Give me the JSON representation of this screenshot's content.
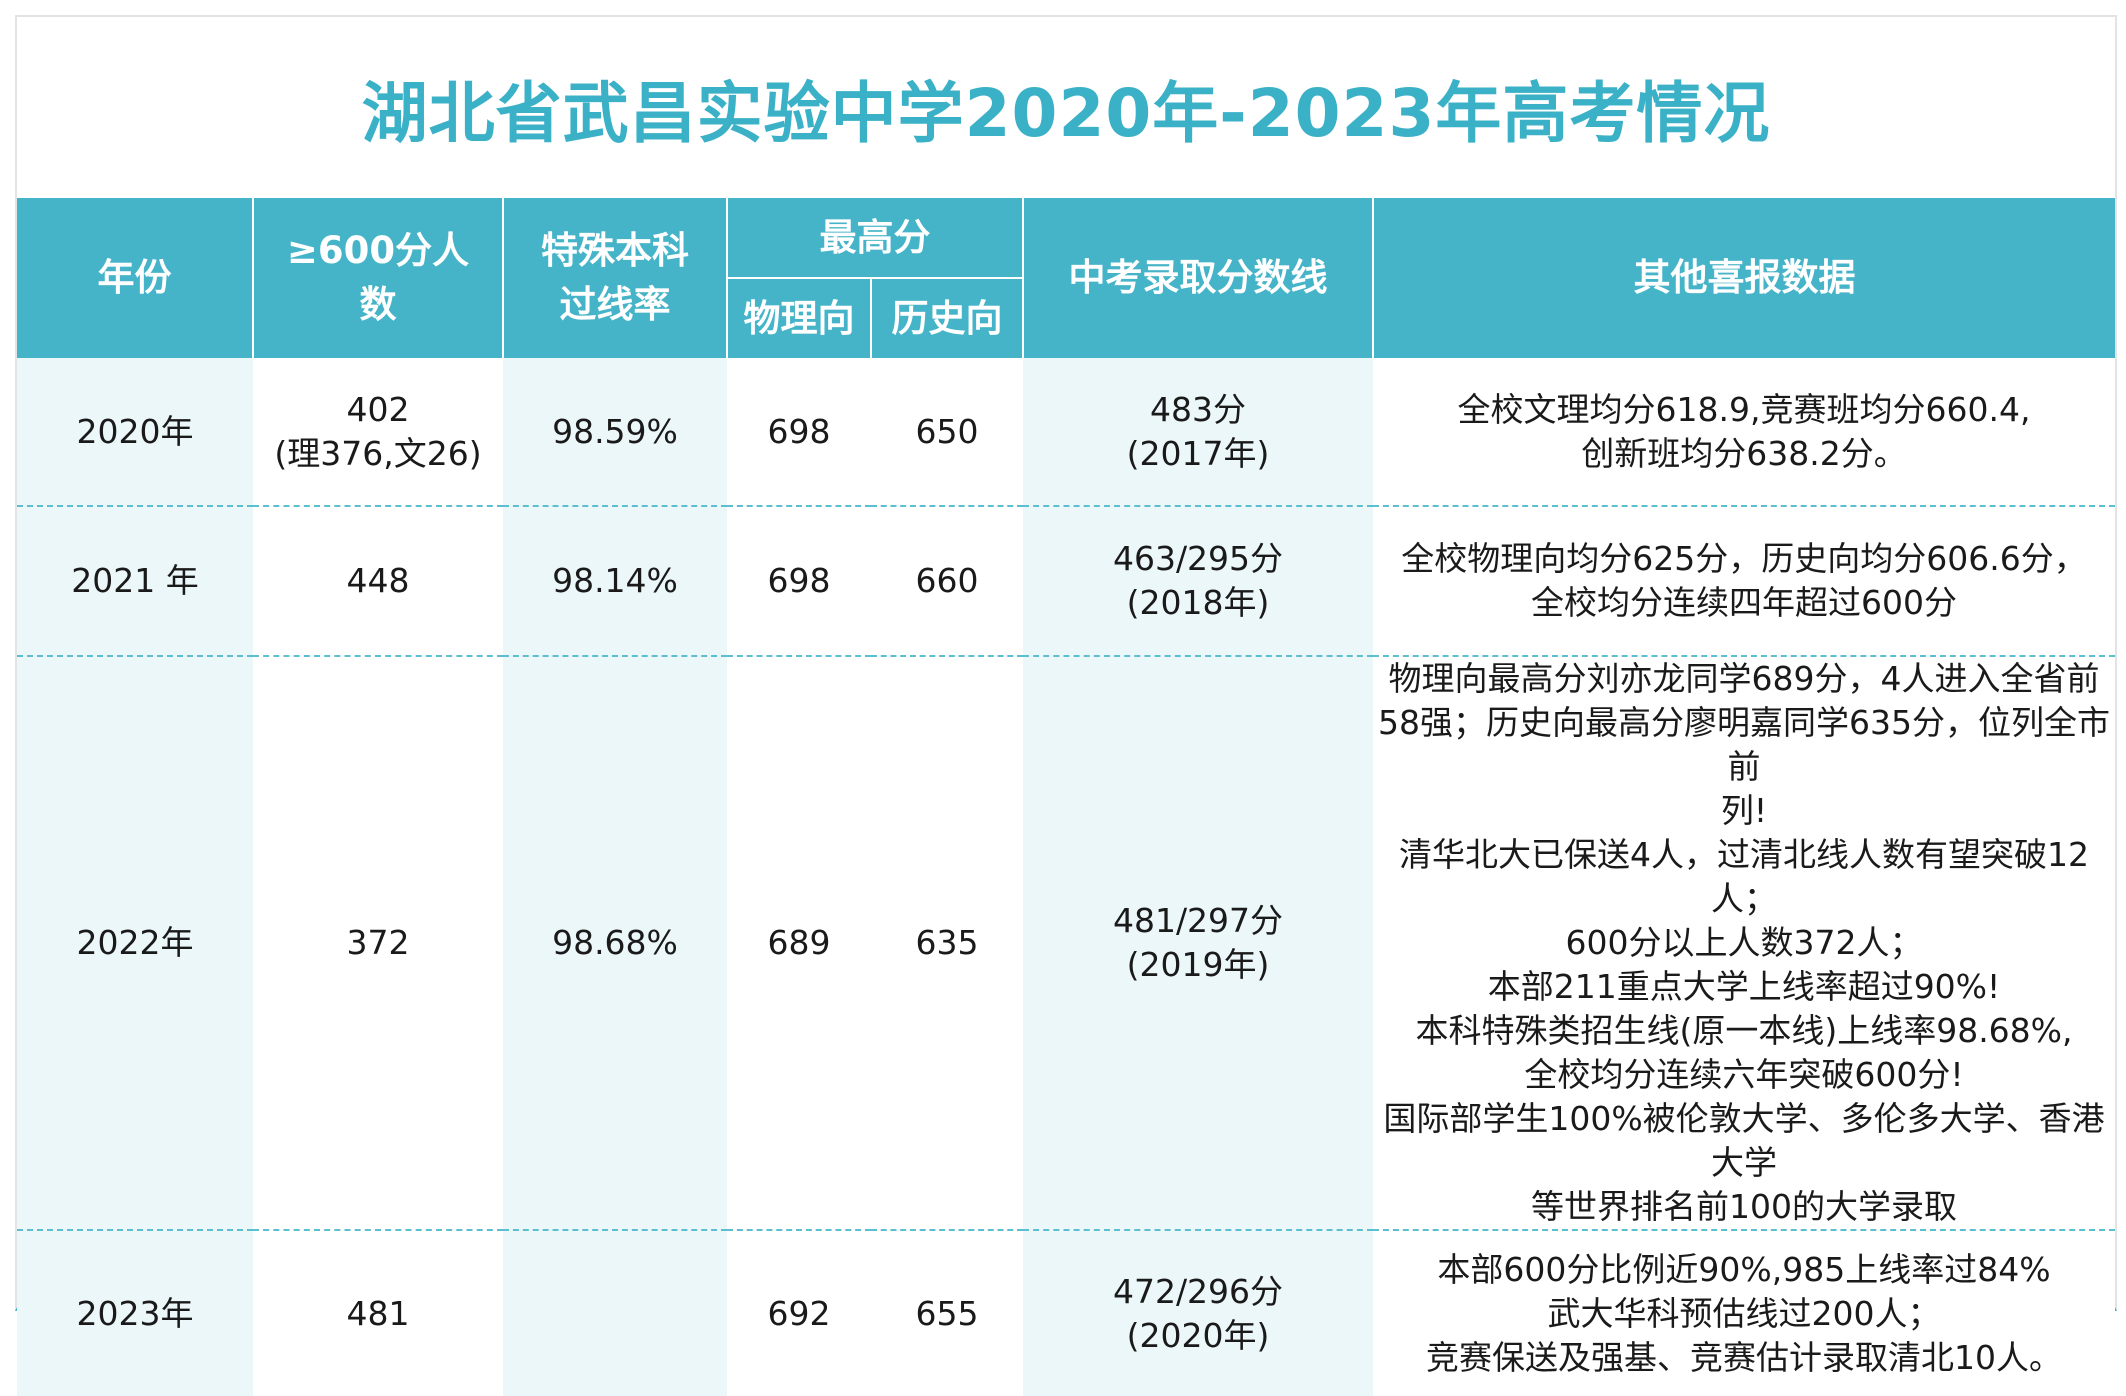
{
  "title": "湖北省武昌实验中学2020年-2023年高考情况",
  "headers": {
    "year": "年份",
    "over600_line1": "≥600分人",
    "over600_line2": "数",
    "pass_rate_line1": "特殊本科",
    "pass_rate_line2": "过线率",
    "top_score": "最高分",
    "physics": "物理向",
    "history": "历史向",
    "zhongkao": "中考录取分数线",
    "other": "其他喜报数据"
  },
  "rows": [
    {
      "year": "2020年",
      "over600": "402",
      "over600_detail": "(理376,文26)",
      "pass_rate": "98.59%",
      "physics": "698",
      "history": "650",
      "zhongkao": "483分",
      "zhongkao_year": "(2017年)",
      "other": [
        "全校文理均分618.9,竞赛班均分660.4,",
        "创新班均分638.2分。"
      ]
    },
    {
      "year": "2021 年",
      "over600": "448",
      "pass_rate": "98.14%",
      "physics": "698",
      "history": "660",
      "zhongkao": "463/295分",
      "zhongkao_year": "(2018年)",
      "other": [
        "全校物理向均分625分，历史向均分606.6分，",
        "全校均分连续四年超过600分"
      ]
    },
    {
      "year": "2022年",
      "over600": "372",
      "pass_rate": "98.68%",
      "physics": "689",
      "history": "635",
      "zhongkao": "481/297分",
      "zhongkao_year": "(2019年)",
      "other": [
        "物理向最高分刘亦龙同学689分，4人进入全省前",
        "58强；历史向最高分廖明嘉同学635分，位列全市前",
        "列!",
        "清华北大已保送4人，过清北线人数有望突破12人；",
        "600分以上人数372人；",
        "本部211重点大学上线率超过90%!",
        "本科特殊类招生线(原一本线)上线率98.68%,",
        "全校均分连续六年突破600分!",
        "国际部学生100%被伦敦大学、多伦多大学、香港大学",
        "等世界排名前100的大学录取"
      ]
    },
    {
      "year": "2023年",
      "over600": "481",
      "pass_rate": "",
      "physics": "692",
      "history": "655",
      "zhongkao": "472/296分",
      "zhongkao_year": "(2020年)",
      "other": [
        "本部600分比例近90%,985上线率过84%",
        "武大华科预估线过200人；",
        "竞赛保送及强基、竞赛估计录取清北10人。"
      ]
    }
  ],
  "colors": {
    "header_bg": "#46b4c8",
    "title": "#3bb1c7",
    "shade": "#ecf7fa"
  }
}
